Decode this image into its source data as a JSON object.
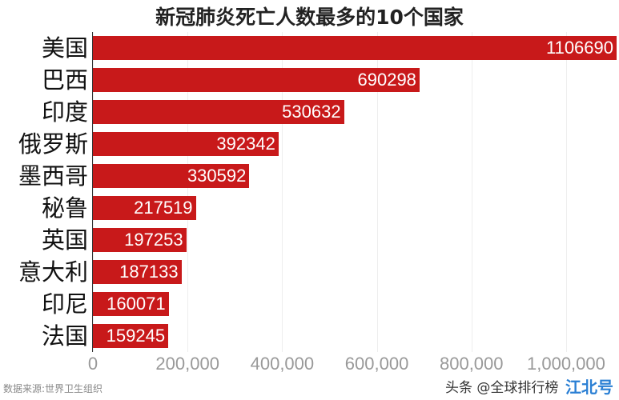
{
  "chart_data": {
    "type": "bar",
    "orientation": "horizontal",
    "title": "新冠肺炎死亡人数最多的10个国家",
    "categories": [
      "美国",
      "巴西",
      "印度",
      "俄罗斯",
      "墨西哥",
      "秘鲁",
      "英国",
      "意大利",
      "印尼",
      "法国"
    ],
    "values": [
      1106690,
      690298,
      530632,
      392342,
      330592,
      217519,
      197253,
      187133,
      160071,
      159245
    ],
    "data_labels": [
      "1106690",
      "690298",
      "530632",
      "392342",
      "330592",
      "217519",
      "197253",
      "187133",
      "160071",
      "159245"
    ],
    "xticks": [
      0,
      200000,
      400000,
      600000,
      800000,
      1000000
    ],
    "xtick_labels": [
      "0",
      "200,000",
      "400,000",
      "600,000",
      "800,000",
      "1,000,000"
    ],
    "grid": true,
    "bar_color": "#c8191a"
  },
  "source": "数据来源:世界卫生组织",
  "credit": "头条 @全球排行榜",
  "watermark": "江北号"
}
